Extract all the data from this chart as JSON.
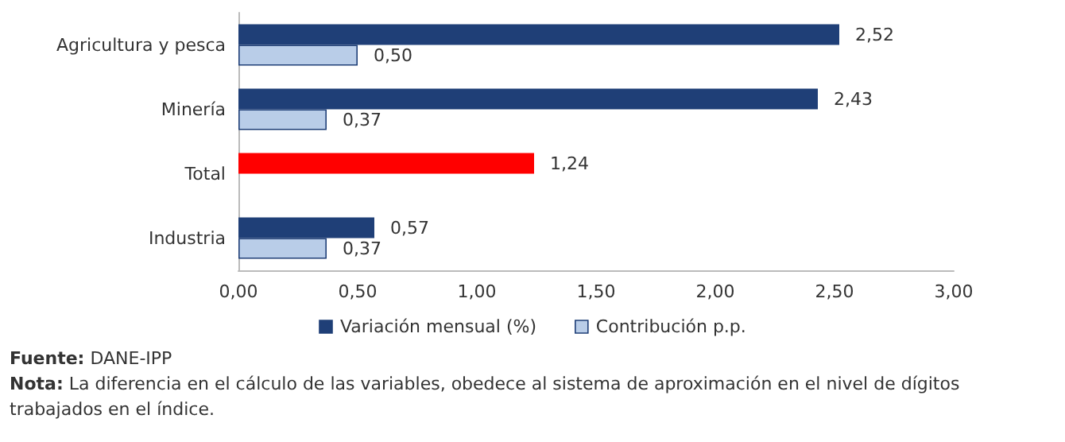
{
  "chart_data": {
    "type": "bar",
    "orientation": "horizontal",
    "categories": [
      "Agricultura y pesca",
      "Minería",
      "Total",
      "Industria"
    ],
    "series": [
      {
        "name": "Variación mensual (%)",
        "color": "#1f3f77",
        "colors": [
          "#1f3f77",
          "#1f3f77",
          "#ff0000",
          "#1f3f77"
        ],
        "values": [
          2.52,
          2.43,
          1.24,
          0.57
        ],
        "value_labels": [
          "2,52",
          "2,43",
          "1,24",
          "0,57"
        ]
      },
      {
        "name": "Contribución p.p.",
        "color": "#b9cde8",
        "values": [
          0.5,
          0.37,
          null,
          0.37
        ],
        "value_labels": [
          "0,50",
          "0,37",
          null,
          "0,37"
        ]
      }
    ],
    "xlim": [
      0,
      3
    ],
    "xticks": [
      {
        "value": 0,
        "label": "0,00"
      },
      {
        "value": 0.5,
        "label": "0,50"
      },
      {
        "value": 1,
        "label": "1,00"
      },
      {
        "value": 1.5,
        "label": "1,50"
      },
      {
        "value": 2,
        "label": "2,00"
      },
      {
        "value": 2.5,
        "label": "2,50"
      },
      {
        "value": 3,
        "label": "3,00"
      }
    ],
    "grid": false,
    "legend": "bottom",
    "annotations": [
      "Fuente: DANE-IPP",
      "Nota: La diferencia en el cálculo de las variables, obedece al sistema de aproximación en el nivel de dígitos trabajados en el índice."
    ]
  }
}
